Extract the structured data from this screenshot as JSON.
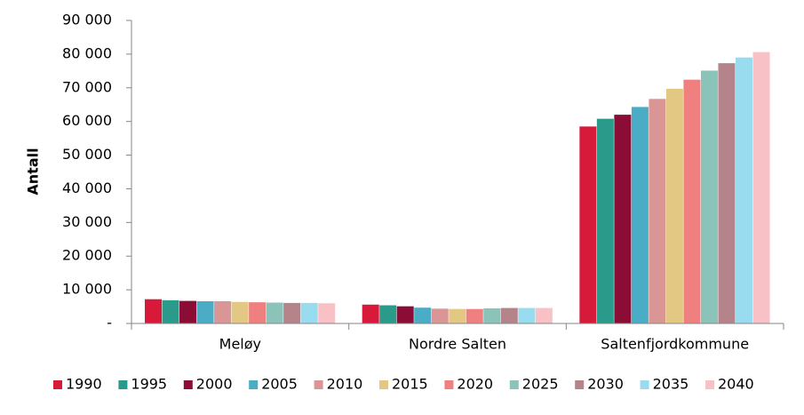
{
  "chart_data": {
    "type": "bar",
    "y_label": "Antall",
    "categories": [
      "Meløy",
      "Nordre Salten",
      "Saltenfjordkommune"
    ],
    "series": [
      {
        "name": "1990",
        "color": "#d7193a",
        "values": [
          7200,
          5600,
          58500
        ]
      },
      {
        "name": "1995",
        "color": "#2a9a8a",
        "values": [
          6900,
          5400,
          60800
        ]
      },
      {
        "name": "2000",
        "color": "#8b0d36",
        "values": [
          6700,
          5100,
          62000
        ]
      },
      {
        "name": "2005",
        "color": "#4bacc6",
        "values": [
          6600,
          4700,
          64300
        ]
      },
      {
        "name": "2010",
        "color": "#d99694",
        "values": [
          6600,
          4400,
          66700
        ]
      },
      {
        "name": "2015",
        "color": "#e3c883",
        "values": [
          6400,
          4300,
          69700
        ]
      },
      {
        "name": "2020",
        "color": "#f08080",
        "values": [
          6300,
          4300,
          72400
        ]
      },
      {
        "name": "2025",
        "color": "#8cc3b8",
        "values": [
          6200,
          4500,
          75100
        ]
      },
      {
        "name": "2030",
        "color": "#b5848a",
        "values": [
          6100,
          4600,
          77300
        ]
      },
      {
        "name": "2035",
        "color": "#99dbef",
        "values": [
          6100,
          4600,
          79000
        ]
      },
      {
        "name": "2040",
        "color": "#f8c1c6",
        "values": [
          6000,
          4600,
          80600
        ]
      }
    ],
    "ylim": [
      0,
      90000
    ],
    "yticks": [
      {
        "value": 0,
        "label": "-"
      },
      {
        "value": 10000,
        "label": "10 000"
      },
      {
        "value": 20000,
        "label": "20 000"
      },
      {
        "value": 30000,
        "label": "30 000"
      },
      {
        "value": 40000,
        "label": "40 000"
      },
      {
        "value": 50000,
        "label": "50 000"
      },
      {
        "value": 60000,
        "label": "60 000"
      },
      {
        "value": 70000,
        "label": "70 000"
      },
      {
        "value": 80000,
        "label": "80 000"
      },
      {
        "value": 90000,
        "label": "90 000"
      }
    ],
    "grid": false,
    "legend": "bottom"
  }
}
